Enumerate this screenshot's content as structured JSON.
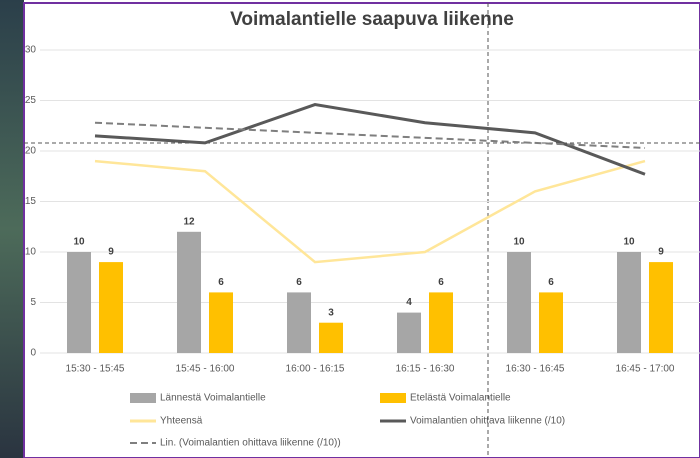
{
  "chart_data": {
    "type": "bar",
    "title": "Voimalantielle saapuva liikenne",
    "categories": [
      "15:30 - 15:45",
      "15:45 - 16:00",
      "16:00 - 16:15",
      "16:15 - 16:30",
      "16:30 - 16:45",
      "16:45 - 17:00"
    ],
    "series": [
      {
        "name": "Lännestä Voimalantielle",
        "type": "bar",
        "color": "#a6a6a6",
        "values": [
          10,
          12,
          6,
          4,
          10,
          10
        ]
      },
      {
        "name": "Etelästä Voimalantielle",
        "type": "bar",
        "color": "#ffc000",
        "values": [
          9,
          6,
          3,
          6,
          6,
          9
        ]
      },
      {
        "name": "Yhteensä",
        "type": "line",
        "color": "#ffe699",
        "values": [
          19,
          18,
          9,
          10,
          16,
          19
        ]
      },
      {
        "name": "Voimalantien ohittava liikenne (/10)",
        "type": "line",
        "color": "#595959",
        "values": [
          21.5,
          20.8,
          24.6,
          22.8,
          21.8,
          17.7
        ]
      },
      {
        "name": "Lin. (Voimalantien ohittava liikenne (/10))",
        "type": "line",
        "dashed": true,
        "color": "#7f7f7f",
        "values": [
          22.8,
          22.3,
          21.8,
          21.3,
          20.8,
          20.3
        ]
      }
    ],
    "ylim": [
      0,
      30
    ],
    "yticks": [
      0,
      5,
      10,
      15,
      20,
      25,
      30
    ],
    "grid": true
  }
}
